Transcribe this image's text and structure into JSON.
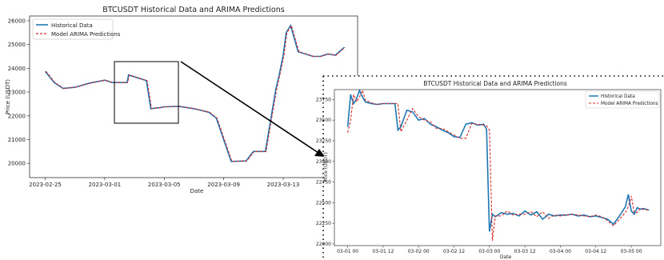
{
  "chart_data": [
    {
      "type": "line",
      "title": "BTCUSDT Historical Data and ARIMA Predictions",
      "xlabel": "Date",
      "ylabel": "Price (USDT)",
      "ylim": [
        19400,
        26200
      ],
      "yticks": [
        20000,
        21000,
        22000,
        23000,
        24000,
        25000,
        26000
      ],
      "xticks": [
        "2023-02-25",
        "2023-03-01",
        "2023-03-05",
        "2023-03-09",
        "2023-03-13"
      ],
      "legend_loc": "upper left",
      "grid": false,
      "series": [
        {
          "name": "Historical Data",
          "color": "#1f77b4",
          "style": "solid"
        },
        {
          "name": "Model ARIMA Predictions",
          "color": "#d62728",
          "style": "dashed"
        }
      ],
      "x_days": [
        0,
        0.6,
        1.2,
        2,
        3,
        4,
        4.5,
        5.5,
        5.6,
        6.3,
        6.8,
        7.1,
        7.6,
        7.7,
        8,
        9,
        10,
        11,
        11.5,
        12.5,
        13.5,
        14,
        14.8,
        15.2,
        15.5,
        15.7,
        16,
        16.2,
        16.5,
        17,
        17.5,
        18,
        18.5,
        19,
        19.5,
        20.1
      ],
      "values": [
        23870,
        23400,
        23150,
        23200,
        23380,
        23500,
        23400,
        23400,
        23720,
        23580,
        23480,
        22300,
        22340,
        22340,
        22380,
        22400,
        22300,
        22150,
        21900,
        20080,
        20100,
        20500,
        20500,
        22000,
        23100,
        23650,
        24550,
        25500,
        25800,
        24700,
        24600,
        24500,
        24500,
        24600,
        24550,
        24880
      ]
    },
    {
      "type": "line",
      "title": "BTCUSDT Historical Data and ARIMA Predictions",
      "xlabel": "Date",
      "ylabel": "Price (USDT)",
      "ylim": [
        21980,
        23870
      ],
      "yticks": [
        22000,
        22250,
        22500,
        22750,
        23000,
        23250,
        23500,
        23750
      ],
      "xticks": [
        "03-01 00",
        "03-01 12",
        "03-02 00",
        "03-02 12",
        "03-03 00",
        "03-03 12",
        "03-04 00",
        "03-04 12",
        "03-05 00"
      ],
      "legend_loc": "upper right",
      "grid": false,
      "series": [
        {
          "name": "Historical Data",
          "color": "#1f77b4",
          "style": "solid"
        },
        {
          "name": "Model ARIMA Predictions",
          "color": "#d62728",
          "style": "dashed"
        }
      ],
      "x_hours": [
        0,
        1,
        2,
        3,
        4,
        5,
        6,
        8,
        10,
        12,
        14,
        16,
        17,
        18,
        20,
        22,
        24,
        26,
        28,
        30,
        32,
        34,
        36,
        38,
        40,
        42,
        44,
        46,
        47,
        48,
        49,
        50,
        52,
        54,
        56,
        58,
        60,
        62,
        64,
        66,
        68,
        70,
        72,
        74,
        76,
        78,
        80,
        82,
        84,
        86,
        88,
        90,
        92,
        94,
        95,
        96,
        97,
        98,
        99,
        100,
        102
      ],
      "historical": [
        23420,
        23810,
        23700,
        23760,
        23860,
        23780,
        23720,
        23700,
        23690,
        23700,
        23700,
        23700,
        23380,
        23420,
        23620,
        23600,
        23500,
        23520,
        23450,
        23420,
        23380,
        23350,
        23300,
        23290,
        23450,
        23470,
        23440,
        23450,
        23390,
        22150,
        22360,
        22330,
        22380,
        22360,
        22370,
        22340,
        22400,
        22350,
        22390,
        22300,
        22360,
        22340,
        22350,
        22350,
        22360,
        22340,
        22350,
        22330,
        22340,
        22320,
        22300,
        22240,
        22340,
        22450,
        22600,
        22400,
        22360,
        22440,
        22420,
        22430,
        22410
      ],
      "predictions": [
        23350,
        23500,
        23810,
        23720,
        23780,
        23860,
        23740,
        23710,
        23690,
        23700,
        23700,
        23700,
        23700,
        23360,
        23500,
        23640,
        23540,
        23500,
        23480,
        23400,
        23400,
        23360,
        23320,
        23280,
        23280,
        23460,
        23450,
        23440,
        23430,
        23380,
        22040,
        22340,
        22340,
        22400,
        22350,
        22360,
        22360,
        22390,
        22330,
        22390,
        22310,
        22350,
        22340,
        22350,
        22360,
        22350,
        22340,
        22330,
        22350,
        22330,
        22280,
        22220,
        22300,
        22380,
        22450,
        22580,
        22380,
        22380,
        22430,
        22420,
        22410
      ]
    }
  ]
}
